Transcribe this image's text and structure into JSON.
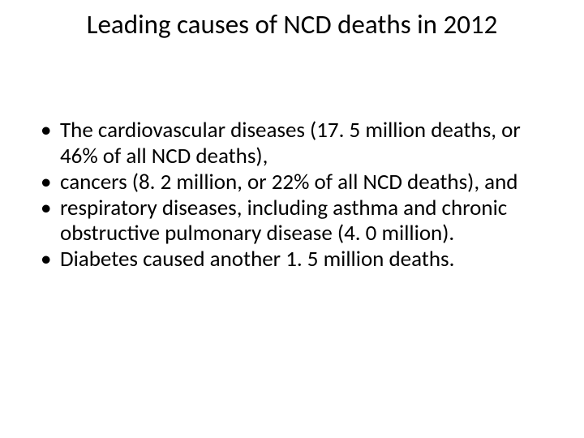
{
  "slide": {
    "title": "Leading causes of NCD deaths in 2012",
    "bullets": [
      "The cardiovascular diseases (17. 5 million deaths, or 46% of all NCD deaths),",
      "cancers (8. 2 million, or 22% of all NCD deaths), and",
      "respiratory diseases, including asthma and chronic obstructive pulmonary disease (4. 0 million).",
      "Diabetes caused another 1. 5 million deaths."
    ]
  },
  "style": {
    "background_color": "#ffffff",
    "text_color": "#000000",
    "title_fontsize": 33,
    "body_fontsize": 27,
    "font_family": "Calibri"
  }
}
